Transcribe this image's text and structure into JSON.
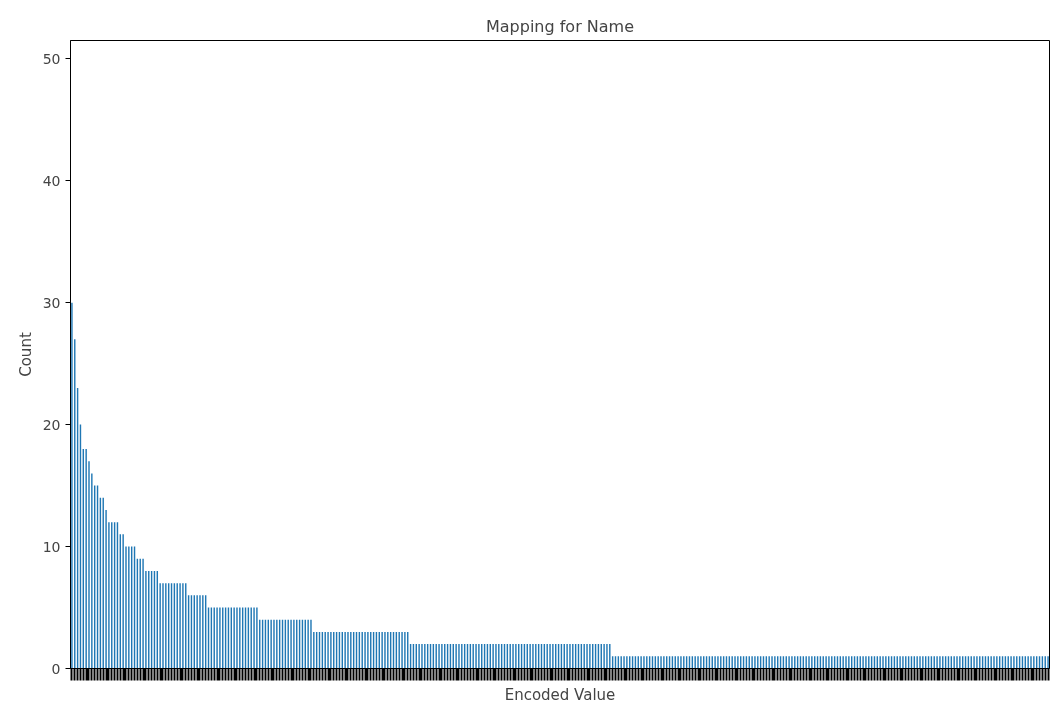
{
  "chart_data": {
    "type": "bar",
    "title": "Mapping for Name",
    "xlabel": "Encoded Value",
    "ylabel": "Count",
    "color": "#1f77b4",
    "values": [
      30,
      27,
      23,
      20,
      18,
      18,
      17,
      16,
      15,
      15,
      14,
      14,
      13,
      12,
      12,
      12,
      12,
      11,
      11,
      10,
      10,
      10,
      10,
      9,
      9,
      9,
      8,
      8,
      8,
      8,
      8,
      7,
      7,
      7,
      7,
      7,
      7,
      7,
      7,
      7,
      7,
      6,
      6,
      6,
      6,
      6,
      6,
      6,
      5,
      5,
      5,
      5,
      5,
      5,
      5,
      5,
      5,
      5,
      5,
      5,
      5,
      5,
      5,
      5,
      5,
      5,
      4,
      4,
      4,
      4,
      4,
      4,
      4,
      4,
      4,
      4,
      4,
      4,
      4,
      4,
      4,
      4,
      4,
      4,
      4,
      3,
      3,
      3,
      3,
      3,
      3,
      3,
      3,
      3,
      3,
      3,
      3,
      3,
      3,
      3,
      3,
      3,
      3,
      3,
      3,
      3,
      3,
      3,
      3,
      3,
      3,
      3,
      3,
      3,
      3,
      3,
      3,
      3,
      3,
      2,
      2,
      2,
      2,
      2,
      2,
      2,
      2,
      2,
      2,
      2,
      2,
      2,
      2,
      2,
      2,
      2,
      2,
      2,
      2,
      2,
      2,
      2,
      2,
      2,
      2,
      2,
      2,
      2,
      2,
      2,
      2,
      2,
      2,
      2,
      2,
      2,
      2,
      2,
      2,
      2,
      2,
      2,
      2,
      2,
      2,
      2,
      2,
      2,
      2,
      2,
      2,
      2,
      2,
      2,
      2,
      2,
      2,
      2,
      2,
      2,
      2,
      2,
      2,
      2,
      2,
      2,
      2,
      2,
      2,
      2,
      1,
      1,
      1,
      1,
      1,
      1,
      1,
      1,
      1,
      1,
      1,
      1,
      1,
      1,
      1,
      1,
      1,
      1,
      1,
      1,
      1,
      1,
      1,
      1,
      1,
      1,
      1,
      1,
      1,
      1,
      1,
      1,
      1,
      1,
      1,
      1,
      1,
      1,
      1,
      1,
      1,
      1,
      1,
      1,
      1,
      1,
      1,
      1,
      1,
      1,
      1,
      1,
      1,
      1,
      1,
      1,
      1,
      1,
      1,
      1,
      1,
      1,
      1,
      1,
      1,
      1,
      1,
      1,
      1,
      1,
      1,
      1,
      1,
      1,
      1,
      1,
      1,
      1,
      1,
      1,
      1,
      1,
      1,
      1,
      1,
      1,
      1,
      1,
      1,
      1,
      1,
      1,
      1,
      1,
      1,
      1,
      1,
      1,
      1,
      1,
      1,
      1,
      1,
      1,
      1,
      1,
      1,
      1,
      1,
      1,
      1,
      1,
      1,
      1,
      1,
      1,
      1,
      1,
      1,
      1,
      1,
      1,
      1,
      1,
      1,
      1,
      1,
      1,
      1,
      1,
      1,
      1,
      1,
      1,
      1,
      1,
      1,
      1,
      1,
      1,
      1,
      1,
      1,
      1,
      1,
      1,
      1,
      1,
      1,
      1,
      1,
      1,
      1,
      1
    ],
    "categories": [
      null,
      null,
      null,
      null,
      null,
      null,
      null,
      null,
      null,
      null,
      null,
      null,
      null,
      null,
      null,
      null,
      null,
      null,
      null,
      null,
      null,
      null,
      null,
      null,
      null,
      null,
      null,
      null,
      null,
      null,
      null,
      null,
      null,
      null,
      null,
      null,
      null,
      null,
      null,
      null,
      null,
      null,
      null,
      null,
      null,
      null,
      null,
      null,
      null,
      null,
      null,
      null,
      null,
      null,
      null,
      null,
      null,
      null,
      null,
      null,
      null,
      null,
      null,
      null,
      null,
      null,
      null,
      null,
      null,
      null,
      null,
      null,
      null,
      null,
      null,
      null,
      null,
      null,
      null,
      null,
      null,
      null,
      null,
      null,
      null,
      null,
      null,
      null,
      null,
      null,
      null,
      null,
      null,
      null,
      null,
      null,
      null,
      null,
      null,
      null,
      null,
      null,
      null,
      null,
      null,
      null,
      null,
      null,
      null,
      null,
      null,
      null,
      null,
      null,
      null,
      null,
      null,
      null,
      null,
      null,
      null,
      null,
      null,
      null,
      null,
      null,
      null,
      null,
      null,
      null,
      null,
      null,
      null,
      null,
      null,
      null,
      null,
      null,
      null,
      null,
      null,
      null,
      null,
      null,
      null,
      null,
      null,
      null,
      null,
      null,
      null,
      null,
      null,
      null,
      null,
      null,
      null,
      null,
      null,
      null,
      null,
      null,
      null,
      null,
      null,
      null,
      null,
      null,
      null,
      null,
      null,
      null,
      null,
      null,
      null,
      null,
      null,
      null,
      null,
      null,
      null,
      null,
      null,
      null,
      null,
      null,
      null,
      null,
      null,
      null,
      null,
      null,
      null,
      null,
      null,
      null,
      null,
      null,
      null,
      null,
      null,
      null,
      null,
      null,
      null,
      null,
      null,
      null,
      null,
      null,
      null,
      null,
      null,
      null,
      null,
      null,
      null,
      null,
      null,
      null,
      null,
      null,
      null,
      null,
      null,
      null,
      null,
      null,
      null,
      null,
      null,
      null,
      null,
      null,
      null,
      null,
      null,
      null,
      null,
      null,
      null,
      null,
      null,
      null,
      null,
      null,
      null,
      null,
      null,
      null,
      null,
      null,
      null,
      null,
      null,
      null,
      null,
      null,
      null,
      null,
      null,
      null,
      null,
      null,
      null,
      null,
      null,
      null,
      null,
      null,
      null,
      null,
      null,
      null,
      null,
      null,
      null,
      null,
      null,
      null,
      null,
      null,
      null,
      null,
      null,
      null,
      null,
      null,
      null,
      null,
      null,
      null,
      null,
      null,
      null,
      null,
      null,
      null,
      null,
      null,
      null,
      null,
      null,
      null,
      null,
      null,
      null,
      null,
      null,
      null,
      null,
      null,
      null,
      null,
      null,
      null,
      null,
      null,
      null,
      null,
      null,
      null,
      null,
      null,
      null,
      null,
      null,
      null,
      null,
      null,
      null,
      null,
      null,
      null,
      null,
      null,
      null,
      null,
      null,
      null,
      null,
      null,
      null,
      null
    ],
    "ylim": [
      0,
      51.5
    ],
    "yticks": [
      0,
      10,
      20,
      30,
      40,
      50
    ],
    "grid": false
  }
}
